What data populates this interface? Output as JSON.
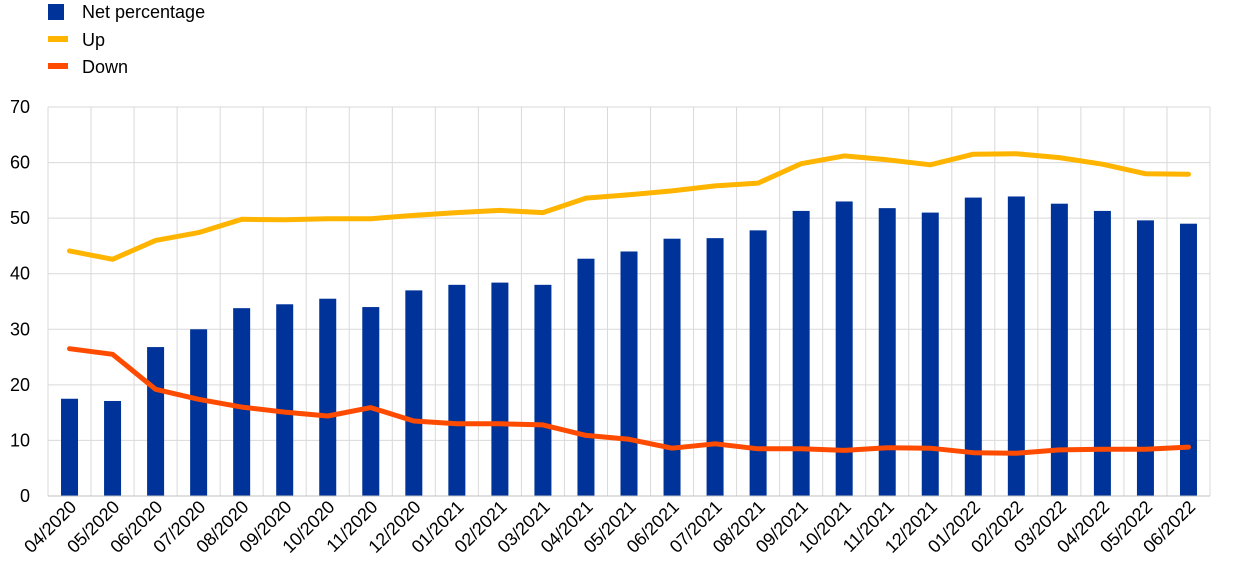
{
  "legend": {
    "net": "Net percentage",
    "up": "Up",
    "down": "Down"
  },
  "colors": {
    "net": "#003399",
    "up": "#FFB400",
    "down": "#FF4B00",
    "grid": "#d9d9d9"
  },
  "chart_data": {
    "type": "bar",
    "categories": [
      "04/2020",
      "05/2020",
      "06/2020",
      "07/2020",
      "08/2020",
      "09/2020",
      "10/2020",
      "11/2020",
      "12/2020",
      "01/2021",
      "02/2021",
      "03/2021",
      "04/2021",
      "05/2021",
      "06/2021",
      "07/2021",
      "08/2021",
      "09/2021",
      "10/2021",
      "11/2021",
      "12/2021",
      "01/2022",
      "02/2022",
      "03/2022",
      "04/2022",
      "05/2022",
      "06/2022"
    ],
    "series": [
      {
        "name": "Net percentage",
        "type": "bar",
        "values": [
          17.5,
          17.1,
          26.8,
          30.0,
          33.8,
          34.5,
          35.5,
          34.0,
          37.0,
          38.0,
          38.4,
          38.0,
          42.7,
          44.0,
          46.3,
          46.4,
          47.8,
          51.3,
          53.0,
          51.8,
          51.0,
          53.7,
          53.9,
          52.6,
          51.3,
          49.6,
          49.0
        ]
      },
      {
        "name": "Up",
        "type": "line",
        "values": [
          44.1,
          42.6,
          46.0,
          47.4,
          49.8,
          49.7,
          49.9,
          49.9,
          50.5,
          51.0,
          51.4,
          51.0,
          53.6,
          54.2,
          54.9,
          55.8,
          56.3,
          59.8,
          61.2,
          60.5,
          59.6,
          61.5,
          61.6,
          60.9,
          59.7,
          58.0,
          57.9
        ]
      },
      {
        "name": "Down",
        "type": "line",
        "values": [
          26.5,
          25.5,
          19.2,
          17.4,
          16.0,
          15.1,
          14.4,
          15.9,
          13.5,
          13.0,
          13.0,
          12.8,
          10.9,
          10.2,
          8.6,
          9.4,
          8.5,
          8.5,
          8.2,
          8.7,
          8.6,
          7.8,
          7.7,
          8.3,
          8.4,
          8.4,
          8.8
        ]
      }
    ],
    "ylim": [
      0,
      70
    ],
    "yticks": [
      0,
      10,
      20,
      30,
      40,
      50,
      60,
      70
    ],
    "grid": true,
    "legend_position": "top-left"
  }
}
